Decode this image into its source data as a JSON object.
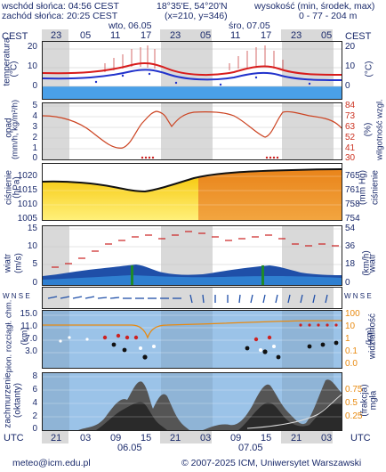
{
  "header": {
    "sunrise": "wschód słońca: 04:56 CEST",
    "sunset": "zachód słońca: 20:25 CEST",
    "coords": "18°35'E, 54°20'N",
    "grid": "(x=210, y=346)",
    "height_label": "wysokość (min, środek, max)",
    "height_values": "0 - 77 - 204 m"
  },
  "time_axis": {
    "tz_left": "CEST",
    "tz_right": "CEST",
    "day1": "wto, 06.05",
    "day2": "śro, 07.05",
    "top_hours": [
      "23",
      "05",
      "11",
      "17",
      "23",
      "05",
      "11",
      "17",
      "23",
      "05"
    ],
    "bottom_tz_left": "UTC",
    "bottom_tz_right": "UTC",
    "bottom_hours": [
      "21",
      "03",
      "09",
      "15",
      "21",
      "03",
      "09",
      "15",
      "21",
      "03"
    ],
    "bottom_date1": "06.05",
    "bottom_date2": "07.05"
  },
  "panels": {
    "temperature": {
      "label_left": "temperatura",
      "unit_left": "(°C)",
      "unit_right": "(°C)",
      "ticks_left": [
        "20",
        "10",
        "0"
      ],
      "ticks_right": [
        "20",
        "10",
        "0"
      ]
    },
    "precip": {
      "label_left": "opad",
      "unit_left": "(mm/h, kg/m²/h)",
      "label_right": "wilgotność wzgl.",
      "unit_right": "(%)",
      "ticks_left": [
        "5",
        "4",
        "3",
        "2",
        "1",
        "0"
      ],
      "ticks_right": [
        "84",
        "73",
        "63",
        "52",
        "41",
        "30"
      ]
    },
    "pressure": {
      "label_left": "ciśnienie",
      "unit_left": "(hPa)",
      "label_right": "ciśnienie",
      "unit_right": "(mm Hg)",
      "ticks_left": [
        "1020",
        "1015",
        "1010",
        "1005"
      ],
      "ticks_right": [
        "765",
        "761",
        "758",
        "754"
      ]
    },
    "wind": {
      "label_left": "wiatr",
      "unit_left": "(m/s)",
      "label_right": "wiatr",
      "unit_right": "(km/h)",
      "ticks_left": [
        "15",
        "10",
        "5",
        "0"
      ],
      "ticks_right": [
        "54",
        "36",
        "18",
        "0"
      ]
    },
    "wind_dir": {
      "compass_left": "W N S E",
      "compass_right": "W N S E"
    },
    "visibility": {
      "label_left": "pion. rozciągł. chm.",
      "unit_left": "(km)",
      "label_right": "widzialność",
      "unit_right": "(km)",
      "ticks_left": [
        "15.0",
        "11.0",
        "7.0",
        "3.0"
      ],
      "ticks_right": [
        "100",
        "10",
        "1",
        "0.1",
        "0.0"
      ]
    },
    "clouds": {
      "label_left": "zachmurzenie",
      "unit_left": "(oktanty)",
      "label_right": "(frakcja)",
      "unit_right": "mgła",
      "ticks_left": [
        "8",
        "6",
        "4",
        "2",
        "0"
      ],
      "ticks_right": [
        "0.75",
        "0.5",
        "0.25"
      ]
    }
  },
  "footer": {
    "email": "meteo@icm.edu.pl",
    "copyright": "© 2007-2025 ICM, Uniwersytet Warszawski"
  },
  "colors": {
    "text": "#1a2a6b",
    "shade": "#d9d9d9",
    "temp_red": "#d81c1c",
    "temp_blue": "#2233cc",
    "humidity": "#cc4422",
    "pressure_line": "#111111",
    "wind_fill": "#1f4fa8",
    "vis_bg": "#9bc3e8",
    "cloud_dark": "#333333"
  }
}
